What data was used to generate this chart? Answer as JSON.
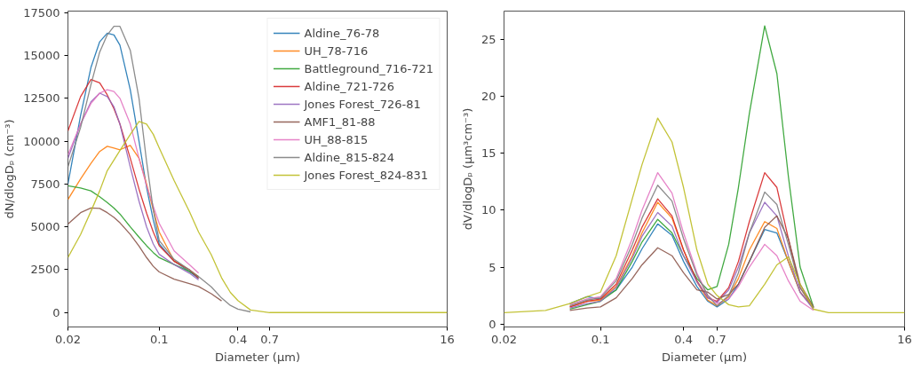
{
  "chart_data": [
    {
      "type": "line",
      "xlabel": "Diameter (μm)",
      "ylabel": "dN/dlogDₚ (cm⁻³)",
      "log": "x",
      "grid": false,
      "legend": "top right",
      "xlim": [
        0.02,
        16
      ],
      "ylim": [
        -840,
        17590
      ],
      "xticks": [
        0.02,
        0.1,
        0.4,
        0.7,
        16
      ],
      "yticks": [
        0,
        2500,
        5000,
        7500,
        10000,
        12500,
        15000,
        17500
      ],
      "x": [
        0.02,
        0.025,
        0.03,
        0.035,
        0.04,
        0.045,
        0.05,
        0.06,
        0.07,
        0.08,
        0.09,
        0.1,
        0.13,
        0.17,
        0.2,
        0.25,
        0.3,
        0.35,
        0.4,
        0.5,
        0.7,
        1,
        16
      ],
      "series": [
        {
          "name": "Aldine_76-78",
          "color": "#1f77b4",
          "values": [
            7500,
            11500,
            14300,
            15800,
            16300,
            16200,
            15600,
            13000,
            10000,
            7300,
            5400,
            4000,
            3000,
            2400,
            2000,
            null,
            null,
            null,
            null,
            null,
            null,
            null,
            null
          ]
        },
        {
          "name": "UH_78-716",
          "color": "#ff7f0e",
          "values": [
            6600,
            7800,
            8700,
            9400,
            9700,
            9600,
            9500,
            9750,
            9000,
            7500,
            6000,
            4700,
            3000,
            2500,
            2100,
            null,
            null,
            null,
            null,
            null,
            null,
            null,
            null
          ]
        },
        {
          "name": "Battleground_716-721",
          "color": "#2ca02c",
          "values": [
            7400,
            7270,
            7100,
            6760,
            6420,
            6100,
            5750,
            5000,
            4400,
            3900,
            3500,
            3200,
            2800,
            2400,
            2100,
            null,
            null,
            null,
            null,
            null,
            null,
            null,
            null
          ]
        },
        {
          "name": "Aldine_721-726",
          "color": "#d62728",
          "values": [
            10600,
            12600,
            13600,
            13400,
            12700,
            11900,
            11000,
            9000,
            7200,
            5800,
            4700,
            3900,
            3000,
            2500,
            2000,
            null,
            null,
            null,
            null,
            null,
            null,
            null,
            null
          ]
        },
        {
          "name": "Jones Forest_726-81",
          "color": "#9467bd",
          "values": [
            9000,
            11000,
            12300,
            12800,
            12600,
            12000,
            11000,
            8500,
            6500,
            5000,
            4000,
            3400,
            2800,
            2300,
            1900,
            null,
            null,
            null,
            null,
            null,
            null,
            null,
            null
          ]
        },
        {
          "name": "AMF1_81-88",
          "color": "#8c564b",
          "values": [
            5170,
            5830,
            6100,
            6080,
            5830,
            5550,
            5240,
            4560,
            3880,
            3210,
            2700,
            2370,
            1950,
            1690,
            1520,
            1100,
            680,
            null,
            null,
            null,
            null,
            null,
            null
          ]
        },
        {
          "name": "UH_88-815",
          "color": "#e377c2",
          "values": [
            9200,
            11000,
            12200,
            12800,
            13000,
            12900,
            12500,
            11000,
            9000,
            7400,
            6200,
            5200,
            3600,
            2800,
            2300,
            null,
            null,
            null,
            null,
            null,
            null,
            null,
            null
          ]
        },
        {
          "name": "Aldine_815-824",
          "color": "#7f7f7f",
          "values": [
            8500,
            10800,
            13300,
            15200,
            16200,
            16700,
            16700,
            15300,
            12500,
            8800,
            6000,
            4200,
            3100,
            2500,
            2100,
            1500,
            850,
            420,
            200,
            40,
            null,
            null,
            null
          ]
        },
        {
          "name": "Jones Forest_824-831",
          "color": "#bcbd22",
          "values": [
            3210,
            4560,
            5910,
            7100,
            8280,
            8900,
            9460,
            10390,
            11150,
            11000,
            10400,
            9600,
            7700,
            5900,
            4700,
            3380,
            2030,
            1180,
            700,
            150,
            0,
            0,
            0
          ]
        }
      ]
    },
    {
      "type": "line",
      "xlabel": "Diameter (μm)",
      "ylabel": "dV/dlogDₚ (μm³cm⁻³)",
      "log": "x",
      "grid": false,
      "xlim": [
        0.02,
        16
      ],
      "ylim": [
        -0.26,
        27.5
      ],
      "xticks": [
        0.02,
        0.1,
        0.4,
        0.7,
        16
      ],
      "yticks": [
        0,
        5,
        10,
        15,
        20,
        25
      ],
      "x": [
        0.02,
        0.04,
        0.06,
        0.08,
        0.1,
        0.13,
        0.17,
        0.2,
        0.26,
        0.33,
        0.4,
        0.5,
        0.6,
        0.7,
        0.85,
        1,
        1.2,
        1.55,
        1.9,
        2.3,
        2.8,
        3.5,
        4.5,
        16
      ],
      "series": [
        {
          "color": "#1f77b4",
          "values": [
            null,
            null,
            1.8,
            2.4,
            2.2,
            3,
            5,
            6.6,
            8.8,
            7.8,
            5.5,
            3.3,
            2,
            1.5,
            2.2,
            3.5,
            5.5,
            8.3,
            8,
            5.5,
            2.8,
            1.4,
            null,
            null
          ]
        },
        {
          "color": "#ff7f0e",
          "values": [
            null,
            null,
            1.5,
            2,
            2.1,
            3.3,
            6,
            8,
            10.7,
            9.3,
            6.5,
            3.7,
            2.1,
            1.6,
            2.4,
            4,
            6.5,
            9,
            8.4,
            5.5,
            2.8,
            1.4,
            null,
            null
          ]
        },
        {
          "color": "#2ca02c",
          "values": [
            null,
            null,
            1.3,
            1.7,
            2,
            3,
            5.5,
            7.2,
            9.2,
            8,
            6,
            4,
            3,
            3.3,
            7,
            12,
            18.5,
            26.2,
            22,
            13,
            5,
            1.5,
            null,
            null
          ]
        },
        {
          "color": "#d62728",
          "values": [
            null,
            null,
            1.5,
            2,
            2.2,
            3.5,
            6.5,
            8.5,
            11,
            9.5,
            6.5,
            3.8,
            2.3,
            2,
            3.2,
            5.5,
            9,
            13.3,
            12,
            7.5,
            3.2,
            1.4,
            null,
            null
          ]
        },
        {
          "color": "#9467bd",
          "values": [
            null,
            null,
            1.4,
            1.8,
            2,
            3.2,
            5.8,
            7.7,
            9.8,
            8.6,
            6,
            3.7,
            2.3,
            1.9,
            3,
            5,
            8,
            10.7,
            9.5,
            6,
            2.8,
            1.3,
            null,
            null
          ]
        },
        {
          "color": "#8c564b",
          "values": [
            null,
            null,
            1.2,
            1.4,
            1.5,
            2.3,
            4,
            5.2,
            6.7,
            6,
            4.5,
            3,
            2.8,
            2.2,
            2.6,
            3.5,
            5.5,
            8.5,
            9.5,
            7.5,
            3.5,
            1.5,
            null,
            null
          ]
        },
        {
          "color": "#e377c2",
          "values": [
            null,
            null,
            1.7,
            2.2,
            2.4,
            4,
            7.5,
            10,
            13.3,
            11.5,
            8,
            4.5,
            2.5,
            1.8,
            2.2,
            3.3,
            5,
            7,
            6,
            3.8,
            2,
            1.2,
            null,
            null
          ]
        },
        {
          "color": "#7f7f7f",
          "values": [
            null,
            null,
            1.6,
            2.1,
            2.3,
            3.8,
            7,
            9.3,
            12.2,
            10.8,
            7.5,
            4.3,
            2.5,
            1.6,
            2.5,
            4.5,
            8,
            11.6,
            10.5,
            7,
            3.2,
            1.4,
            null,
            null
          ]
        },
        {
          "color": "#bcbd22",
          "values": [
            1,
            1.2,
            1.8,
            2.4,
            2.8,
            6,
            11,
            14,
            18.1,
            16,
            12,
            6.5,
            3.5,
            2.5,
            1.7,
            1.5,
            1.6,
            3.5,
            5.2,
            5.9,
            3.5,
            1.3,
            1,
            1
          ]
        }
      ]
    }
  ]
}
